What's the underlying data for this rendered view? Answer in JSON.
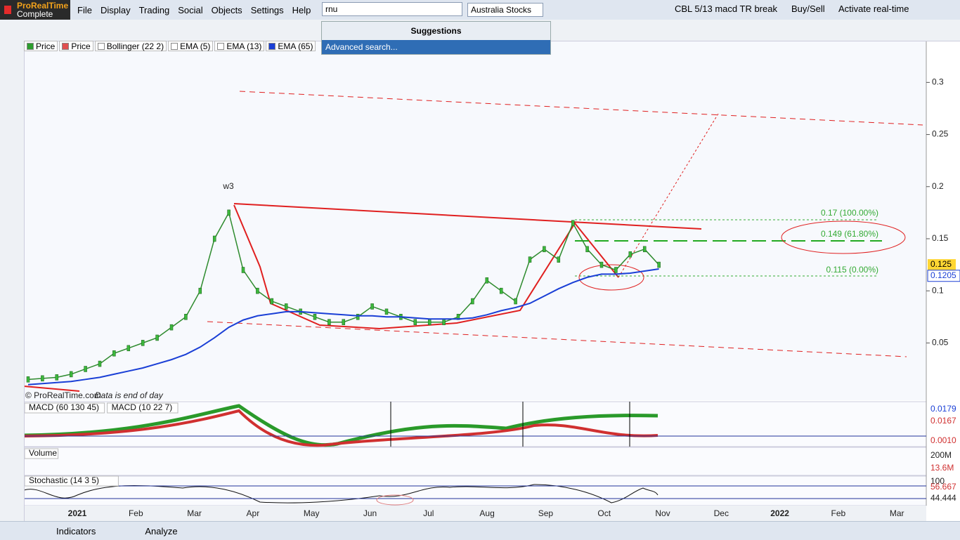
{
  "app": {
    "logo": "ProRealTime",
    "edition": "Complete",
    "menu": [
      "File",
      "Display",
      "Trading",
      "Social",
      "Objects",
      "Settings",
      "Help"
    ],
    "search": "rnu",
    "market": "Australia Stocks",
    "suggestions": "Suggestions",
    "advanced": "Advanced search...",
    "alert_name": "CBL 5/13 macd TR break",
    "buysell": "Buy/Sell",
    "realtime": "Activate real-time"
  },
  "legend": [
    {
      "name": "Price",
      "color": "#2e9e2e"
    },
    {
      "name": "Price",
      "color": "#e05050"
    },
    {
      "name": "Bollinger (22 2)",
      "color": "#ffffff"
    },
    {
      "name": "EMA (5)",
      "color": "#ffffff"
    },
    {
      "name": "EMA (13)",
      "color": "#ffffff"
    },
    {
      "name": "EMA (65)",
      "color": "#1a3fd6"
    }
  ],
  "chart_data": {
    "type": "line",
    "series": [
      {
        "name": "Price",
        "color": "#2e8b2e",
        "values": [
          0.015,
          0.016,
          0.017,
          0.02,
          0.025,
          0.03,
          0.04,
          0.045,
          0.05,
          0.055,
          0.065,
          0.075,
          0.1,
          0.15,
          0.175,
          0.12,
          0.1,
          0.09,
          0.085,
          0.08,
          0.075,
          0.07,
          0.07,
          0.075,
          0.085,
          0.08,
          0.075,
          0.07,
          0.07,
          0.07,
          0.075,
          0.09,
          0.11,
          0.1,
          0.09,
          0.13,
          0.14,
          0.13,
          0.165,
          0.14,
          0.125,
          0.12,
          0.135,
          0.14,
          0.125
        ]
      },
      {
        "name": "EMA (65)",
        "color": "#1a3fd6",
        "values": [
          0.01,
          0.011,
          0.012,
          0.013,
          0.015,
          0.017,
          0.02,
          0.023,
          0.026,
          0.03,
          0.034,
          0.039,
          0.046,
          0.055,
          0.065,
          0.072,
          0.076,
          0.078,
          0.08,
          0.08,
          0.079,
          0.078,
          0.077,
          0.076,
          0.076,
          0.075,
          0.075,
          0.074,
          0.073,
          0.073,
          0.073,
          0.074,
          0.077,
          0.081,
          0.084,
          0.088,
          0.095,
          0.102,
          0.108,
          0.113,
          0.116,
          0.116,
          0.117,
          0.119,
          0.121
        ]
      }
    ],
    "ylim": [
      -0.005,
      0.34
    ],
    "yticks": [
      0.05,
      0.1,
      0.15,
      0.2,
      0.25,
      0.3
    ],
    "month_labels": [
      "2021",
      "Feb",
      "Mar",
      "Apr",
      "May",
      "Jun",
      "Jul",
      "Aug",
      "Sep",
      "Oct",
      "Nov",
      "Dec",
      "2022",
      "Feb",
      "Mar"
    ],
    "annotations": [
      "w3",
      "0.17 (100.00%)",
      "0.149 (61.80%)",
      "0.115 (0.00%)"
    ],
    "last_price": 0.125,
    "ema_value": 0.1205,
    "copyright": "© ProRealTime.com",
    "note": "Data is end of day"
  },
  "macd": {
    "labels": [
      "MACD (60 130 45)",
      "MACD (10 22 7)"
    ],
    "scale": [
      "0.0179",
      "0.0167",
      "0.0010"
    ]
  },
  "volume": {
    "label": "Volume",
    "scale": [
      "200M",
      "13.6M"
    ]
  },
  "stochastic": {
    "label": "Stochastic (14 3 5)",
    "scale": [
      "100",
      "56.667",
      "44.444"
    ]
  },
  "bottom": {
    "indicators": "Indicators",
    "analyze": "Analyze"
  }
}
